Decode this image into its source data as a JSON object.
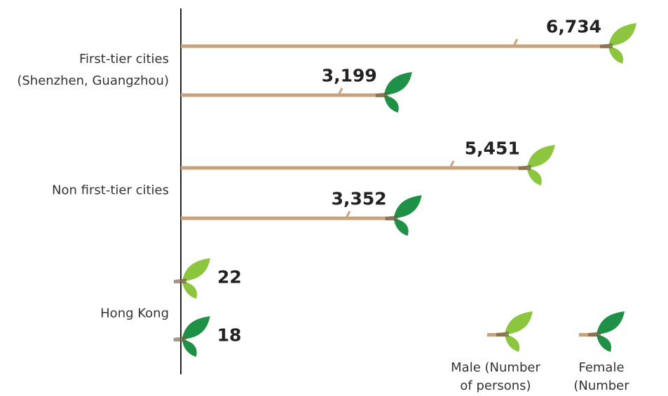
{
  "chart_data": {
    "type": "bar",
    "orientation": "horizontal",
    "categories": [
      "First-tier cities\n(Shenzhen, Guangzhou)",
      "Non first-tier cities",
      "Hong Kong"
    ],
    "series": [
      {
        "name": "Male (Number\nof persons)",
        "color": "#8cc63f",
        "values": [
          6734,
          5451,
          22
        ],
        "value_labels": [
          "6,734",
          "5,451",
          "22"
        ]
      },
      {
        "name": "Female (Number\nof persons)",
        "color": "#1e9146",
        "values": [
          3199,
          3352,
          18
        ],
        "value_labels": [
          "3,199",
          "3,352",
          "18"
        ]
      }
    ],
    "branch_color": "#c8a27a"
  }
}
